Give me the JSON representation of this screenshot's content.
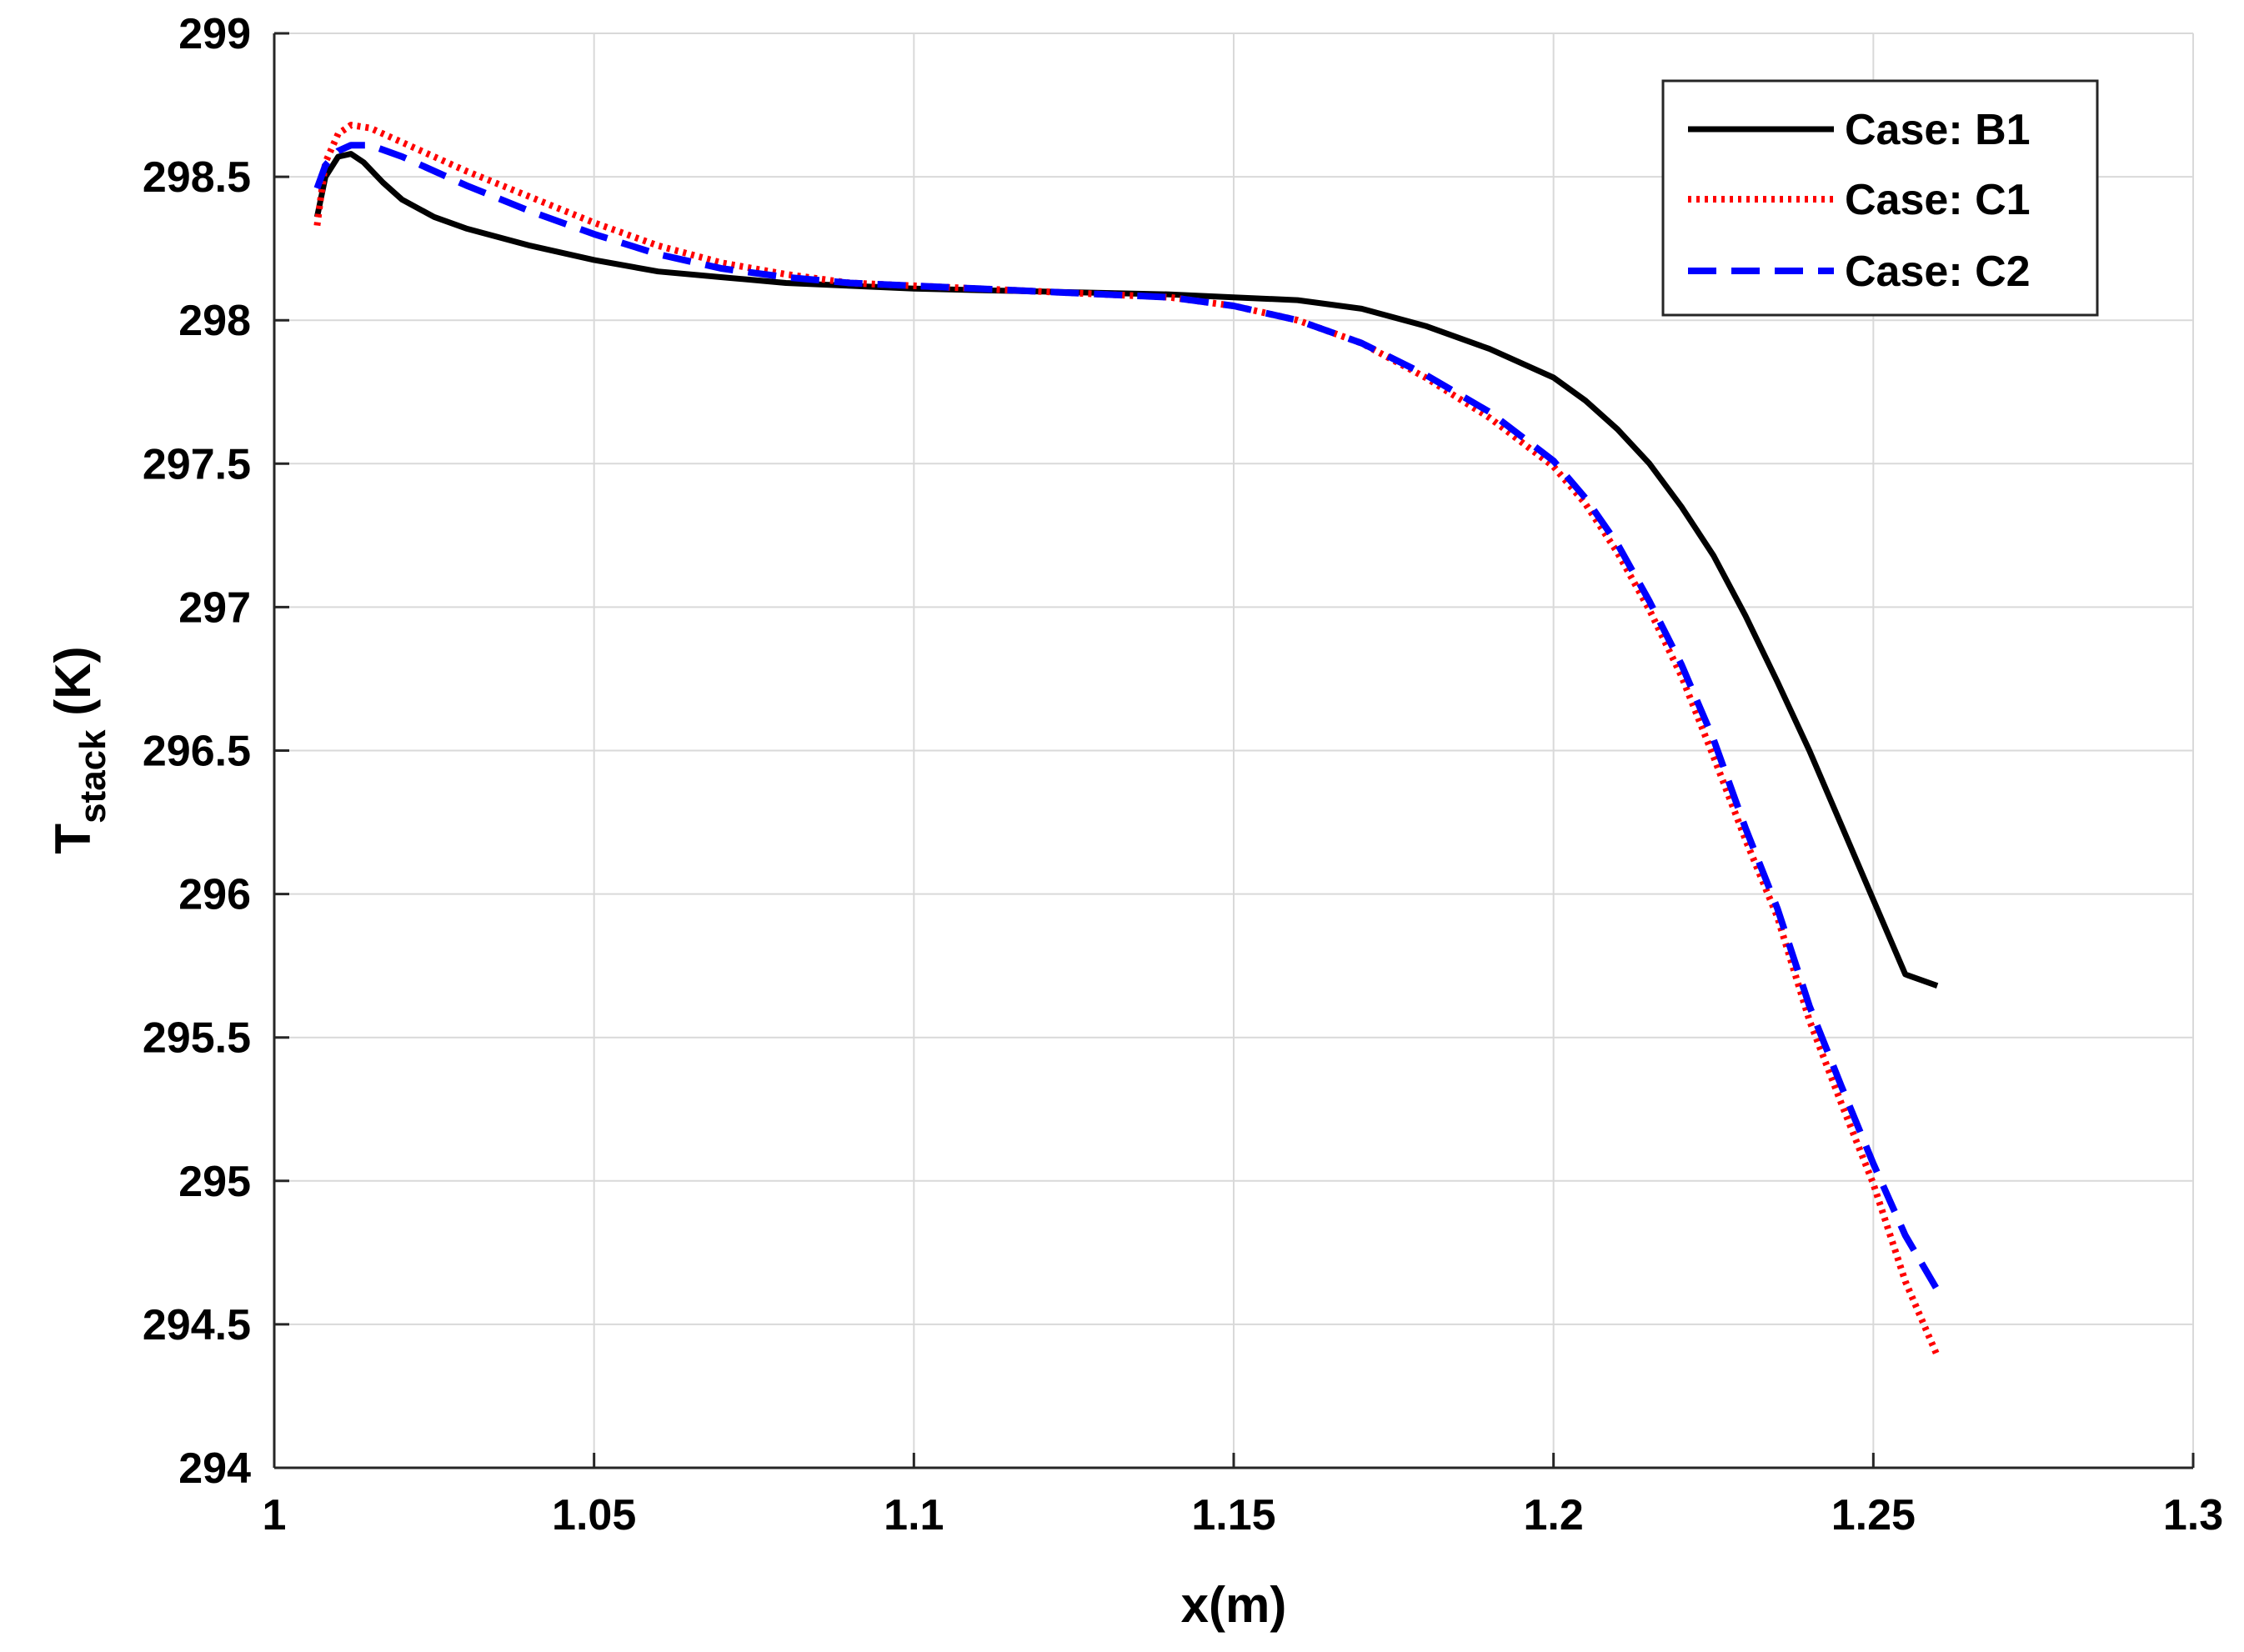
{
  "chart_data": {
    "type": "line",
    "title": "",
    "xlabel": "x(m)",
    "ylabel_main": "T",
    "ylabel_sub": "stack",
    "ylabel_unit": " (K)",
    "xlim": [
      1,
      1.3
    ],
    "ylim": [
      294,
      299
    ],
    "x_ticks": [
      1,
      1.05,
      1.1,
      1.15,
      1.2,
      1.25,
      1.3
    ],
    "x_tick_labels": [
      "1",
      "1.05",
      "1.1",
      "1.15",
      "1.2",
      "1.25",
      "1.3"
    ],
    "y_ticks": [
      294,
      294.5,
      295,
      295.5,
      296,
      296.5,
      297,
      297.5,
      298,
      298.5,
      299
    ],
    "y_tick_labels": [
      "294",
      "294.5",
      "295",
      "295.5",
      "296",
      "296.5",
      "297",
      "297.5",
      "298",
      "298.5",
      "299"
    ],
    "grid": true,
    "legend_position": "top-right",
    "series": [
      {
        "name": "Case: B1",
        "color": "#000000",
        "style": "solid",
        "x": [
          1.0067,
          1.008,
          1.01,
          1.012,
          1.014,
          1.017,
          1.02,
          1.025,
          1.03,
          1.04,
          1.05,
          1.06,
          1.07,
          1.08,
          1.09,
          1.1,
          1.11,
          1.12,
          1.13,
          1.14,
          1.15,
          1.16,
          1.17,
          1.18,
          1.19,
          1.2,
          1.205,
          1.21,
          1.215,
          1.22,
          1.225,
          1.23,
          1.235,
          1.24,
          1.245,
          1.25,
          1.255,
          1.26
        ],
        "y": [
          298.36,
          298.5,
          298.57,
          298.58,
          298.55,
          298.48,
          298.42,
          298.36,
          298.32,
          298.26,
          298.21,
          298.17,
          298.15,
          298.13,
          298.12,
          298.11,
          298.105,
          298.1,
          298.095,
          298.09,
          298.08,
          298.07,
          298.04,
          297.98,
          297.9,
          297.8,
          297.72,
          297.62,
          297.5,
          297.35,
          297.18,
          296.97,
          296.74,
          296.5,
          296.24,
          295.98,
          295.72,
          295.68
        ]
      },
      {
        "name": "Case: C1",
        "color": "#ff0000",
        "style": "dotted",
        "x": [
          1.0067,
          1.008,
          1.01,
          1.012,
          1.015,
          1.02,
          1.03,
          1.04,
          1.05,
          1.06,
          1.07,
          1.08,
          1.09,
          1.1,
          1.11,
          1.12,
          1.13,
          1.14,
          1.15,
          1.16,
          1.17,
          1.18,
          1.19,
          1.2,
          1.205,
          1.21,
          1.215,
          1.22,
          1.225,
          1.23,
          1.235,
          1.24,
          1.245,
          1.25,
          1.255,
          1.26
        ],
        "y": [
          298.33,
          298.55,
          298.65,
          298.68,
          298.67,
          298.62,
          298.52,
          298.43,
          298.34,
          298.26,
          298.2,
          298.16,
          298.13,
          298.12,
          298.11,
          298.1,
          298.09,
          298.08,
          298.05,
          298.0,
          297.92,
          297.8,
          297.66,
          297.49,
          297.36,
          297.19,
          296.99,
          296.76,
          296.48,
          296.19,
          295.92,
          295.56,
          295.27,
          294.99,
          294.65,
          294.39
        ]
      },
      {
        "name": "Case: C2",
        "color": "#0000ff",
        "style": "dashed",
        "x": [
          1.0067,
          1.008,
          1.01,
          1.012,
          1.015,
          1.02,
          1.03,
          1.04,
          1.05,
          1.06,
          1.07,
          1.08,
          1.09,
          1.1,
          1.11,
          1.12,
          1.13,
          1.14,
          1.15,
          1.16,
          1.17,
          1.18,
          1.19,
          1.2,
          1.205,
          1.21,
          1.215,
          1.22,
          1.225,
          1.23,
          1.235,
          1.24,
          1.245,
          1.25,
          1.255,
          1.26
        ],
        "y": [
          298.46,
          298.54,
          298.59,
          298.61,
          298.61,
          298.57,
          298.47,
          298.38,
          298.3,
          298.23,
          298.18,
          298.15,
          298.13,
          298.12,
          298.11,
          298.1,
          298.09,
          298.08,
          298.05,
          298.0,
          297.92,
          297.81,
          297.68,
          297.51,
          297.38,
          297.22,
          297.02,
          296.8,
          296.54,
          296.23,
          295.95,
          295.61,
          295.33,
          295.06,
          294.81,
          294.62
        ]
      }
    ]
  }
}
